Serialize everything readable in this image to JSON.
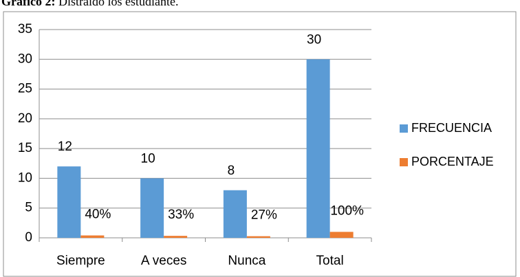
{
  "chart_data": {
    "type": "bar",
    "title_prefix": "Gráfico 2:",
    "title": "Distraído los estudiante.",
    "categories": [
      "Siempre",
      "A veces",
      "Nunca",
      "Total"
    ],
    "series": [
      {
        "name": "FRECUENCIA",
        "color": "#5b9bd5",
        "values": [
          12,
          10,
          8,
          30
        ]
      },
      {
        "name": "PORCENTAJE",
        "color": "#ed7d31",
        "values": [
          0.4,
          0.33,
          0.27,
          1
        ],
        "value_labels": [
          "40%",
          "33%",
          "27%",
          "100%"
        ]
      }
    ],
    "ylim": [
      0,
      35
    ],
    "yticks": [
      0,
      5,
      10,
      15,
      20,
      25,
      30,
      35
    ],
    "grid": true,
    "legend": "right"
  }
}
